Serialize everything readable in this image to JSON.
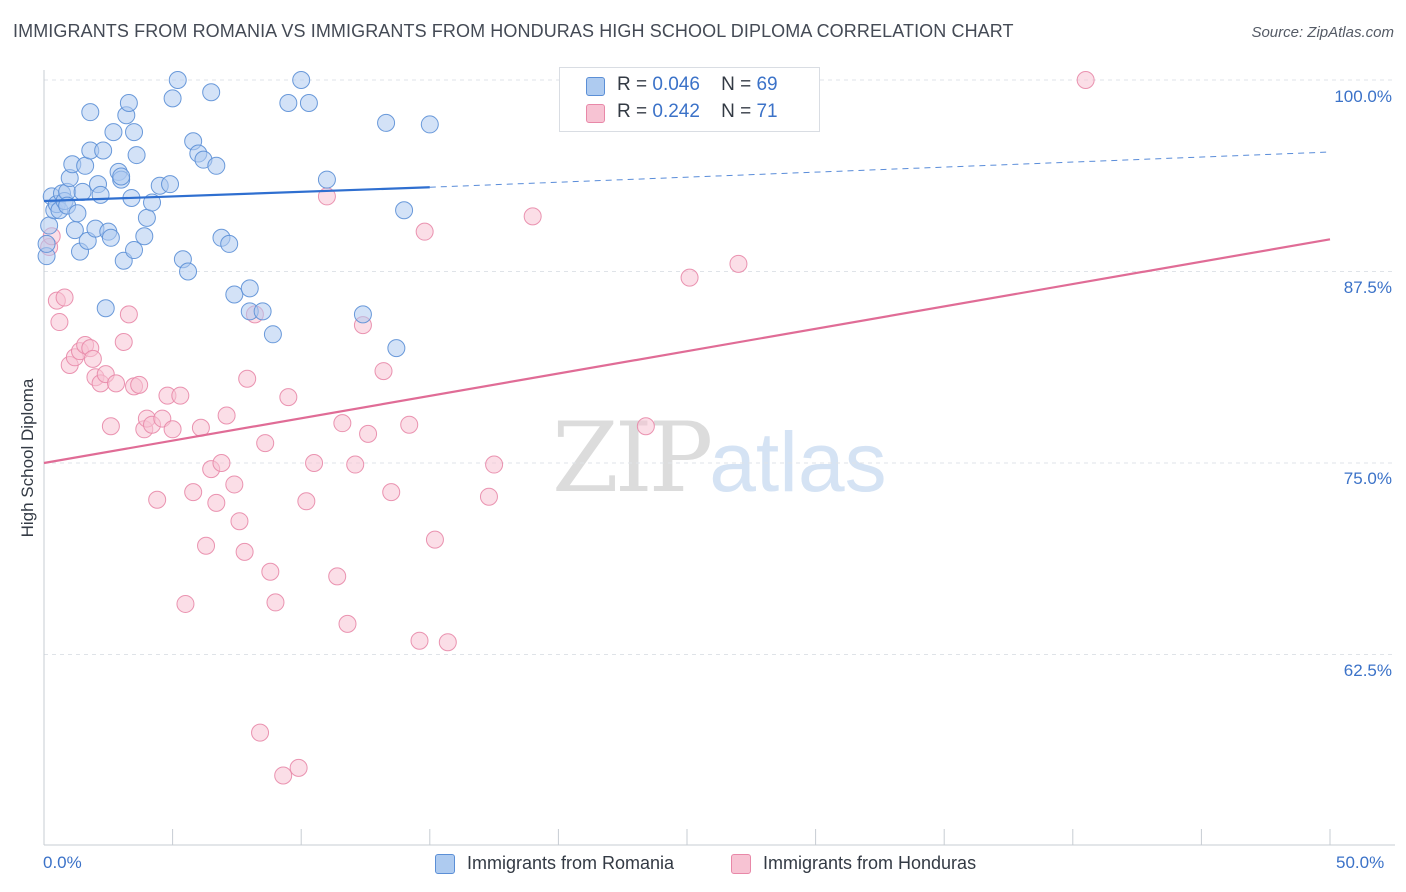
{
  "title": "IMMIGRANTS FROM ROMANIA VS IMMIGRANTS FROM HONDURAS HIGH SCHOOL DIPLOMA CORRELATION CHART",
  "source": "Source: ZipAtlas.com",
  "watermark": {
    "zip": "ZIP",
    "atlas": "atlas"
  },
  "legend": {
    "romania": {
      "r_label": "R =",
      "r_value": "0.046",
      "n_label": "N =",
      "n_value": "69"
    },
    "honduras": {
      "r_label": "R =",
      "r_value": "0.242",
      "n_label": "N =",
      "n_value": "71"
    }
  },
  "colors": {
    "romania_fill": "#aecbf0",
    "romania_stroke": "#5b8fd6",
    "romania_line": "#2f6fd0",
    "honduras_fill": "#f7c3d3",
    "honduras_stroke": "#e888a8",
    "honduras_line": "#e06c96",
    "tick_text": "#3b72c8",
    "grid": "#dfe3e8"
  },
  "chart_data": {
    "type": "scatter",
    "title": "IMMIGRANTS FROM ROMANIA VS IMMIGRANTS FROM HONDURAS HIGH SCHOOL DIPLOMA CORRELATION CHART",
    "xlabel": "",
    "ylabel": "High School Diploma",
    "xlim": [
      0,
      50
    ],
    "ylim": [
      51.5,
      101
    ],
    "x_tick_labels": [
      "0.0%",
      "50.0%"
    ],
    "y_ticks": [
      62.5,
      75.0,
      87.5,
      100.0
    ],
    "y_tick_labels": [
      "62.5%",
      "75.0%",
      "87.5%",
      "100.0%"
    ],
    "grid": "horizontal dashed",
    "legend_position": "top-center",
    "series": [
      {
        "name": "Immigrants from Romania",
        "trend": {
          "x0": 0,
          "y0": 92.1,
          "x1": 15,
          "y1": 93.0,
          "extended_to_x": 50,
          "extended_y": 95.3
        },
        "points": [
          [
            0.1,
            88.5
          ],
          [
            0.1,
            89.3
          ],
          [
            0.2,
            90.5
          ],
          [
            0.3,
            92.4
          ],
          [
            0.4,
            91.5
          ],
          [
            0.5,
            91.9
          ],
          [
            0.6,
            91.5
          ],
          [
            0.7,
            92.6
          ],
          [
            0.8,
            92.1
          ],
          [
            0.9,
            92.7
          ],
          [
            0.9,
            91.8
          ],
          [
            1.0,
            93.6
          ],
          [
            1.1,
            94.5
          ],
          [
            1.2,
            90.2
          ],
          [
            1.3,
            91.3
          ],
          [
            1.4,
            88.8
          ],
          [
            1.5,
            92.7
          ],
          [
            1.6,
            94.4
          ],
          [
            1.7,
            89.5
          ],
          [
            1.8,
            97.9
          ],
          [
            1.8,
            95.4
          ],
          [
            2.0,
            90.3
          ],
          [
            2.1,
            93.2
          ],
          [
            2.2,
            92.5
          ],
          [
            2.3,
            95.4
          ],
          [
            2.5,
            90.1
          ],
          [
            2.6,
            89.7
          ],
          [
            2.7,
            96.6
          ],
          [
            2.9,
            94.0
          ],
          [
            3.0,
            93.5
          ],
          [
            3.0,
            93.7
          ],
          [
            3.1,
            88.2
          ],
          [
            3.2,
            97.7
          ],
          [
            3.3,
            98.5
          ],
          [
            3.4,
            92.3
          ],
          [
            3.5,
            96.6
          ],
          [
            3.5,
            88.9
          ],
          [
            3.6,
            95.1
          ],
          [
            4.0,
            91.0
          ],
          [
            4.2,
            92.0
          ],
          [
            4.5,
            93.1
          ],
          [
            4.9,
            93.2
          ],
          [
            5.0,
            98.8
          ],
          [
            5.2,
            100.0
          ],
          [
            5.4,
            88.3
          ],
          [
            5.6,
            87.5
          ],
          [
            5.8,
            96.0
          ],
          [
            6.0,
            95.2
          ],
          [
            6.2,
            94.8
          ],
          [
            6.5,
            99.2
          ],
          [
            6.7,
            94.4
          ],
          [
            6.9,
            89.7
          ],
          [
            7.2,
            89.3
          ],
          [
            7.4,
            86.0
          ],
          [
            8.0,
            86.4
          ],
          [
            8.0,
            84.9
          ],
          [
            8.5,
            84.9
          ],
          [
            8.9,
            83.4
          ],
          [
            9.5,
            98.5
          ],
          [
            10.0,
            100.0
          ],
          [
            10.3,
            98.5
          ],
          [
            11.0,
            93.5
          ],
          [
            12.4,
            84.7
          ],
          [
            13.3,
            97.2
          ],
          [
            13.7,
            82.5
          ],
          [
            14.0,
            91.5
          ],
          [
            15.0,
            97.1
          ],
          [
            2.4,
            85.1
          ],
          [
            3.9,
            89.8
          ]
        ]
      },
      {
        "name": "Immigrants from Honduras",
        "trend": {
          "x0": 0,
          "y0": 75.0,
          "x1": 50,
          "y1": 89.6
        },
        "points": [
          [
            0.2,
            89.1
          ],
          [
            0.3,
            89.8
          ],
          [
            0.5,
            85.6
          ],
          [
            0.6,
            84.2
          ],
          [
            0.8,
            85.8
          ],
          [
            1.0,
            81.4
          ],
          [
            1.2,
            81.9
          ],
          [
            1.4,
            82.3
          ],
          [
            1.6,
            82.7
          ],
          [
            1.8,
            82.5
          ],
          [
            1.9,
            81.8
          ],
          [
            2.0,
            80.6
          ],
          [
            2.2,
            80.2
          ],
          [
            2.4,
            80.8
          ],
          [
            2.6,
            77.4
          ],
          [
            2.8,
            80.2
          ],
          [
            3.1,
            82.9
          ],
          [
            3.3,
            84.7
          ],
          [
            3.5,
            80.0
          ],
          [
            3.7,
            80.1
          ],
          [
            3.9,
            77.2
          ],
          [
            4.0,
            77.9
          ],
          [
            4.2,
            77.5
          ],
          [
            4.4,
            72.6
          ],
          [
            4.6,
            77.9
          ],
          [
            4.8,
            79.4
          ],
          [
            5.0,
            77.2
          ],
          [
            5.3,
            79.4
          ],
          [
            5.5,
            65.8
          ],
          [
            5.8,
            73.1
          ],
          [
            6.1,
            77.3
          ],
          [
            6.3,
            69.6
          ],
          [
            6.5,
            74.6
          ],
          [
            6.7,
            72.4
          ],
          [
            6.9,
            75.0
          ],
          [
            7.1,
            78.1
          ],
          [
            7.4,
            73.6
          ],
          [
            7.6,
            71.2
          ],
          [
            7.8,
            69.2
          ],
          [
            7.9,
            80.5
          ],
          [
            8.2,
            84.7
          ],
          [
            8.4,
            57.4
          ],
          [
            8.6,
            76.3
          ],
          [
            8.8,
            67.9
          ],
          [
            9.0,
            65.9
          ],
          [
            9.3,
            54.6
          ],
          [
            9.5,
            79.3
          ],
          [
            9.9,
            55.1
          ],
          [
            10.2,
            72.5
          ],
          [
            10.5,
            75.0
          ],
          [
            11.0,
            92.4
          ],
          [
            11.4,
            67.6
          ],
          [
            11.6,
            77.6
          ],
          [
            11.8,
            64.5
          ],
          [
            12.1,
            74.9
          ],
          [
            12.4,
            84.0
          ],
          [
            12.6,
            76.9
          ],
          [
            13.2,
            81.0
          ],
          [
            13.5,
            73.1
          ],
          [
            14.2,
            77.5
          ],
          [
            14.6,
            63.4
          ],
          [
            14.8,
            90.1
          ],
          [
            15.2,
            70.0
          ],
          [
            15.7,
            63.3
          ],
          [
            17.3,
            72.8
          ],
          [
            17.5,
            74.9
          ],
          [
            19.0,
            91.1
          ],
          [
            23.4,
            77.4
          ],
          [
            25.1,
            87.1
          ],
          [
            27.0,
            88.0
          ],
          [
            40.5,
            100.0
          ]
        ]
      }
    ]
  },
  "bottom_legend": {
    "romania": "Immigrants from Romania",
    "honduras": "Immigrants from Honduras"
  }
}
